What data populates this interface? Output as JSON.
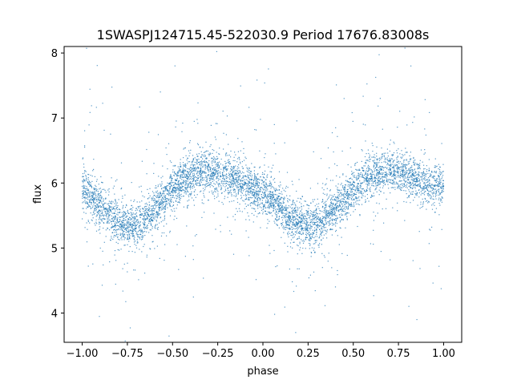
{
  "chart_data": {
    "type": "scatter",
    "title": "1SWASPJ124715.45-522030.9 Period 17676.83008s",
    "xlabel": "phase",
    "ylabel": "flux",
    "xlim": [
      -1.1,
      1.1
    ],
    "ylim": [
      3.55,
      8.1
    ],
    "xticks": [
      "−1.00",
      "−0.75",
      "−0.50",
      "−0.25",
      "0.00",
      "0.25",
      "0.50",
      "0.75",
      "1.00"
    ],
    "xtick_values": [
      -1.0,
      -0.75,
      -0.5,
      -0.25,
      0.0,
      0.25,
      0.5,
      0.75,
      1.0
    ],
    "yticks": [
      "4",
      "5",
      "6",
      "7",
      "8"
    ],
    "ytick_values": [
      4,
      5,
      6,
      7,
      8
    ],
    "grid": false,
    "point_color": "#1f77b4",
    "series": [
      {
        "x": [
          -1.0,
          -0.95,
          -0.9,
          -0.85,
          -0.8,
          -0.75,
          -0.7,
          -0.65,
          -0.6,
          -0.55,
          -0.5,
          -0.45,
          -0.4,
          -0.35,
          -0.3,
          -0.25,
          -0.2,
          -0.15,
          -0.1,
          -0.05,
          0.0,
          0.05,
          0.1,
          0.15,
          0.2,
          0.25,
          0.3,
          0.35,
          0.4,
          0.45,
          0.5,
          0.55,
          0.6,
          0.65,
          0.7,
          0.75,
          0.8,
          0.85,
          0.9,
          0.95,
          1.0
        ],
        "y": [
          5.95,
          5.8,
          5.65,
          5.5,
          5.4,
          5.35,
          5.35,
          5.45,
          5.6,
          5.75,
          5.9,
          6.0,
          6.1,
          6.15,
          6.2,
          6.15,
          6.1,
          6.05,
          6.0,
          5.9,
          5.85,
          5.75,
          5.6,
          5.45,
          5.4,
          5.35,
          5.35,
          5.45,
          5.6,
          5.75,
          5.9,
          6.0,
          6.1,
          6.15,
          6.2,
          6.15,
          6.1,
          6.05,
          6.0,
          5.95,
          5.95
        ]
      }
    ]
  }
}
